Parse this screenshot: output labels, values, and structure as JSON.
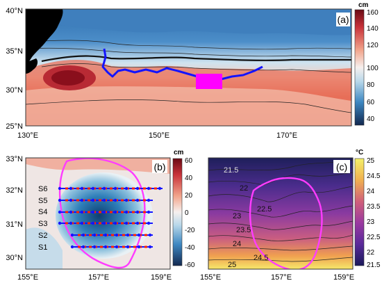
{
  "panel_a": {
    "label": "(a)",
    "lat_ticks": [
      "40°N",
      "35°N",
      "30°N",
      "25°N"
    ],
    "lon_ticks": [
      "130°E",
      "150°E",
      "170°E"
    ],
    "colorbar_unit": "cm",
    "colorbar_ticks": [
      "160",
      "140",
      "120",
      "100",
      "80",
      "60",
      "40"
    ]
  },
  "panel_b": {
    "label": "(b)",
    "lat_ticks": [
      "33°N",
      "32°N",
      "31°N",
      "30°N"
    ],
    "lon_ticks": [
      "155°E",
      "157°E",
      "159°E"
    ],
    "sections": [
      "S6",
      "S5",
      "S4",
      "S3",
      "S2",
      "S1"
    ],
    "colorbar_unit": "cm",
    "colorbar_ticks": [
      "60",
      "40",
      "20",
      "0",
      "-20",
      "-40",
      "-60"
    ]
  },
  "panel_c": {
    "label": "(c)",
    "lon_ticks": [
      "155°E",
      "157°E",
      "159°E"
    ],
    "contour_labels": [
      "21.5",
      "22",
      "22.5",
      "23",
      "23.5",
      "24",
      "24.5",
      "25"
    ],
    "colorbar_unit": "°C",
    "colorbar_ticks": [
      "25",
      "24.5",
      "24",
      "23.5",
      "23",
      "22.5",
      "22",
      "21.5"
    ]
  },
  "colors": {
    "track": "#1414ff",
    "region_box": "#ff00ff",
    "eddy_outline": "#ff3cff",
    "ctd_station": "#ff2200"
  }
}
